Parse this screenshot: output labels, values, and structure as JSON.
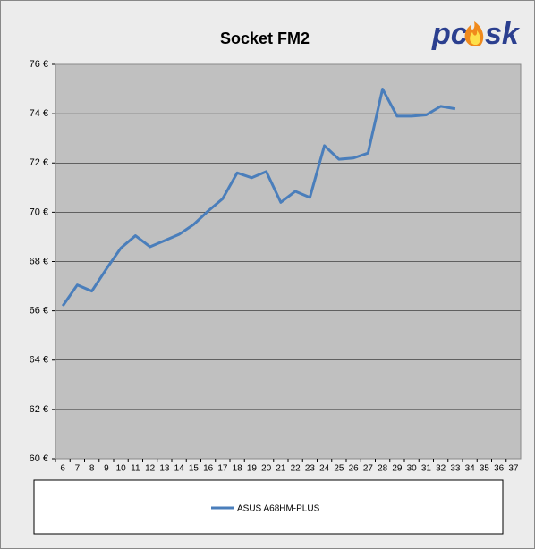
{
  "logo": {
    "left": "pc",
    "right": "sk"
  },
  "chart_data": {
    "type": "line",
    "title": "Socket FM2",
    "categories": [
      "6",
      "7",
      "8",
      "9",
      "10",
      "11",
      "12",
      "13",
      "14",
      "15",
      "16",
      "17",
      "18",
      "19",
      "20",
      "21",
      "22",
      "23",
      "24",
      "25",
      "26",
      "27",
      "28",
      "29",
      "30",
      "31",
      "32",
      "33",
      "34",
      "35",
      "36",
      "37"
    ],
    "series": [
      {
        "name": "ASUS A68HM-PLUS",
        "color": "#4a7ebb",
        "values": [
          66.2,
          67.05,
          66.8,
          67.7,
          68.55,
          69.05,
          68.6,
          68.85,
          69.1,
          69.5,
          70.05,
          70.55,
          71.6,
          71.4,
          71.65,
          70.4,
          70.85,
          70.6,
          72.7,
          72.15,
          72.2,
          72.4,
          75.0,
          73.9,
          73.9,
          73.95,
          74.3,
          74.2,
          null,
          null,
          null,
          null
        ]
      }
    ],
    "ylim": [
      60,
      76
    ],
    "yticks": [
      {
        "value": 60,
        "label": "60 €"
      },
      {
        "value": 62,
        "label": "62 €"
      },
      {
        "value": 64,
        "label": "64 €"
      },
      {
        "value": 66,
        "label": "66 €"
      },
      {
        "value": 68,
        "label": "68 €"
      },
      {
        "value": 70,
        "label": "70 €"
      },
      {
        "value": 72,
        "label": "72 €"
      },
      {
        "value": 74,
        "label": "74 €"
      },
      {
        "value": 76,
        "label": "76 €"
      }
    ],
    "grid": true
  }
}
